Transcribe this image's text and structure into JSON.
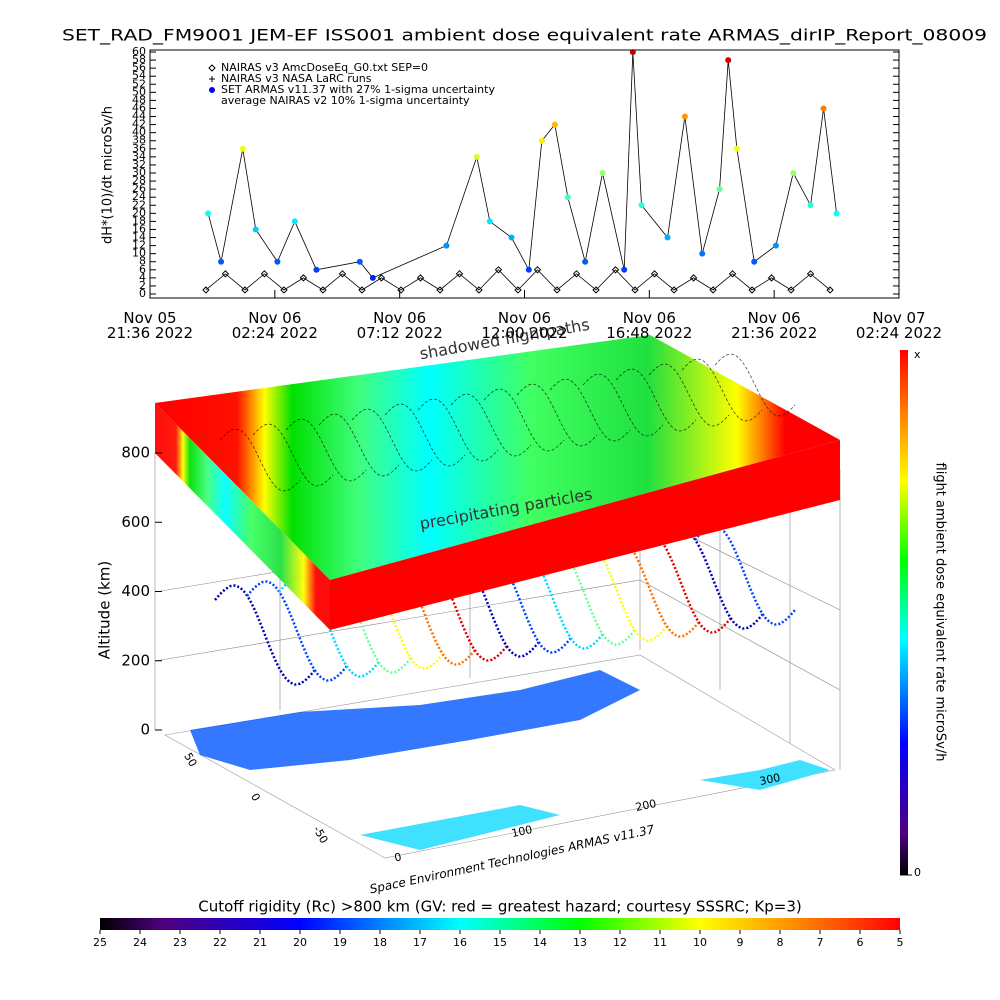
{
  "chart_data": {
    "type": "scatter",
    "title": "SET_RAD_FM9001  JEM-EF ISS001 ambient dose equivalent rate ARMAS_dirIP_Report_08009",
    "y_label": "dH*(10)/dt microSv/h",
    "xlim": [
      "2022-11-05T21:36",
      "2022-11-07T02:24"
    ],
    "xticks": [
      {
        "value": "2022-11-05T21:36",
        "label": "Nov 05\n21:36 2022"
      },
      {
        "value": "2022-11-06T02:24",
        "label": "Nov 06\n02:24 2022"
      },
      {
        "value": "2022-11-06T07:12",
        "label": "Nov 06\n07:12 2022"
      },
      {
        "value": "2022-11-06T12:00",
        "label": "Nov 06\n12:00 2022"
      },
      {
        "value": "2022-11-06T16:48",
        "label": "Nov 06\n16:48 2022"
      },
      {
        "value": "2022-11-06T21:36",
        "label": "Nov 06\n21:36 2022"
      },
      {
        "value": "2022-11-07T02:24",
        "label": "Nov 07\n02:24 2022"
      }
    ],
    "ylim": [
      0,
      60
    ],
    "yticks": [
      0,
      2,
      4,
      6,
      8,
      10,
      12,
      14,
      16,
      18,
      20,
      22,
      24,
      26,
      28,
      30,
      32,
      34,
      36,
      38,
      40,
      42,
      44,
      46,
      48,
      50,
      52,
      54,
      56,
      58,
      60
    ],
    "legend_extra": [
      "NAIRAS v3 NASA LaRC runs",
      "average NAIRAS v2 10% 1-sigma uncertainty"
    ],
    "series": [
      {
        "name": "NAIRAS v3 AmcDoseEq_G0.txt SEP=0",
        "color": "#000000",
        "x": [
          "2022-11-05T23:45",
          "2022-11-06T00:30",
          "2022-11-06T01:15",
          "2022-11-06T02:00",
          "2022-11-06T02:45",
          "2022-11-06T03:30",
          "2022-11-06T04:15",
          "2022-11-06T05:00",
          "2022-11-06T05:45",
          "2022-11-06T06:30",
          "2022-11-06T07:15",
          "2022-11-06T08:00",
          "2022-11-06T08:45",
          "2022-11-06T09:30",
          "2022-11-06T10:15",
          "2022-11-06T11:00",
          "2022-11-06T11:45",
          "2022-11-06T12:30",
          "2022-11-06T13:15",
          "2022-11-06T14:00",
          "2022-11-06T14:45",
          "2022-11-06T15:30",
          "2022-11-06T16:15",
          "2022-11-06T17:00",
          "2022-11-06T17:45",
          "2022-11-06T18:30",
          "2022-11-06T19:15",
          "2022-11-06T20:00",
          "2022-11-06T20:45",
          "2022-11-06T21:30",
          "2022-11-06T22:15",
          "2022-11-06T23:00",
          "2022-11-06T23:45"
        ],
        "values": [
          1,
          5,
          1,
          5,
          1,
          4,
          1,
          5,
          1,
          4,
          1,
          4,
          1,
          5,
          1,
          6,
          1,
          6,
          1,
          5,
          1,
          6,
          1,
          5,
          1,
          4,
          1,
          5,
          1,
          4,
          1,
          5,
          1
        ]
      },
      {
        "name": "SET ARMAS v11.37 with 27% 1-sigma uncertainty",
        "color": "#0000ff",
        "x": [
          "2022-11-05T23:50",
          "2022-11-06T00:20",
          "2022-11-06T01:10",
          "2022-11-06T01:40",
          "2022-11-06T02:30",
          "2022-11-06T03:10",
          "2022-11-06T04:00",
          "2022-11-06T05:40",
          "2022-11-06T06:10",
          "2022-11-06T09:00",
          "2022-11-06T10:10",
          "2022-11-06T10:40",
          "2022-11-06T11:30",
          "2022-11-06T12:10",
          "2022-11-06T12:40",
          "2022-11-06T13:10",
          "2022-11-06T13:40",
          "2022-11-06T14:20",
          "2022-11-06T15:00",
          "2022-11-06T15:50",
          "2022-11-06T16:10",
          "2022-11-06T16:30",
          "2022-11-06T17:30",
          "2022-11-06T18:10",
          "2022-11-06T18:50",
          "2022-11-06T19:30",
          "2022-11-06T19:50",
          "2022-11-06T20:10",
          "2022-11-06T20:50",
          "2022-11-06T21:40",
          "2022-11-06T22:20",
          "2022-11-06T23:00",
          "2022-11-06T23:30",
          "2022-11-07T00:00"
        ],
        "values": [
          20,
          8,
          36,
          16,
          8,
          18,
          6,
          8,
          4,
          12,
          34,
          18,
          14,
          6,
          38,
          42,
          24,
          8,
          30,
          6,
          60,
          22,
          14,
          44,
          10,
          26,
          58,
          36,
          8,
          12,
          30,
          22,
          46,
          20
        ]
      }
    ]
  },
  "panel": {
    "top_label": "shadowed flightpaths",
    "mid_label": "precipitating particles",
    "altitude_label": "Altitude (km)",
    "altitude_lim": [
      0,
      800
    ],
    "altitude_ticks": [
      0,
      200,
      400,
      600,
      800
    ],
    "lat_lim": [
      -50,
      50
    ],
    "lat_ticks": [
      -50,
      0,
      50
    ],
    "lon_lim": [
      0,
      300
    ],
    "lon_ticks": [
      0,
      100,
      200,
      300
    ],
    "credit": "Space Environment Technologies ARMAS v11.37"
  },
  "colorbar_right": {
    "label": "flight ambient dose equivalent rate microSv/h",
    "max_label": "x",
    "min": 0
  },
  "colorbar_bottom": {
    "title": "Cutoff rigidity (Rc) >800 km (GV: red = greatest hazard; courtesy SSSRC; Kp=3)",
    "lim": [
      25,
      5
    ],
    "ticks": [
      25,
      24,
      23,
      22,
      21,
      20,
      19,
      18,
      17,
      16,
      15,
      14,
      13,
      12,
      11,
      10,
      9,
      8,
      7,
      6,
      5
    ]
  }
}
